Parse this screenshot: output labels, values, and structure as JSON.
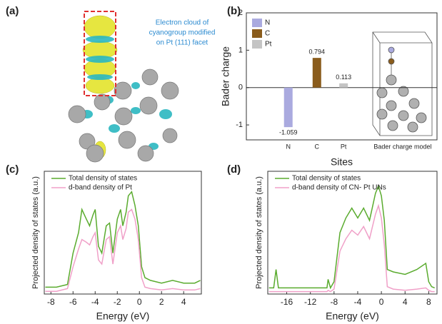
{
  "panel_a": {
    "label": "(a)",
    "caption": [
      "Electron cloud of",
      "cyanogroup modified",
      "on Pt (111) facet"
    ]
  },
  "chart_data": [
    {
      "type": "bar",
      "panel_label": "(b)",
      "y_label": "Bader charge",
      "x_label": "Sites",
      "categories": [
        "N",
        "C",
        "Pt",
        "Bader charge model"
      ],
      "series": [
        {
          "name": "N",
          "color": "#aaaadf",
          "values": [
            -1.059,
            null,
            null,
            null
          ]
        },
        {
          "name": "C",
          "color": "#8a5c1c",
          "values": [
            null,
            0.794,
            null,
            null
          ]
        },
        {
          "name": "Pt",
          "color": "#c4c4c4",
          "values": [
            null,
            null,
            0.113,
            null
          ]
        }
      ],
      "ylim": [
        -1.4,
        2
      ],
      "yticks": [
        -1,
        0,
        1,
        2
      ],
      "legend": "upper left"
    },
    {
      "type": "line",
      "panel_label": "(c)",
      "y_label": "Projected density of states (a.u.)",
      "x_label": "Energy (eV)",
      "x": [
        -8.5,
        -7.5,
        -6.5,
        -6,
        -5.5,
        -5.2,
        -4.8,
        -4.5,
        -4.2,
        -4,
        -3.7,
        -3.4,
        -3,
        -2.7,
        -2.4,
        -2,
        -1.7,
        -1.5,
        -1.2,
        -1,
        -0.7,
        -0.4,
        -0.1,
        0.2,
        0.5,
        1,
        2,
        3,
        4,
        5,
        5.5
      ],
      "series": [
        {
          "name": "Total density of states",
          "color": "#5aab2e",
          "values": [
            0.05,
            0.05,
            0.07,
            0.3,
            0.45,
            0.62,
            0.55,
            0.5,
            0.58,
            0.62,
            0.35,
            0.3,
            0.5,
            0.52,
            0.3,
            0.55,
            0.62,
            0.5,
            0.6,
            0.72,
            0.75,
            0.65,
            0.5,
            0.2,
            0.12,
            0.1,
            0.08,
            0.1,
            0.08,
            0.08,
            0.1
          ]
        },
        {
          "name": "d-band density of Pt",
          "color": "#f0a0c8",
          "values": [
            0.02,
            0.02,
            0.04,
            0.2,
            0.33,
            0.4,
            0.38,
            0.36,
            0.42,
            0.45,
            0.25,
            0.22,
            0.4,
            0.42,
            0.22,
            0.45,
            0.5,
            0.4,
            0.48,
            0.6,
            0.62,
            0.55,
            0.4,
            0.12,
            0.05,
            0.04,
            0.03,
            0.04,
            0.03,
            0.03,
            0.04
          ]
        }
      ],
      "xlim": [
        -8.6,
        5.6
      ],
      "xticks": [
        -8,
        -6,
        -4,
        -2,
        0,
        2,
        4
      ],
      "ylim": [
        0,
        0.9
      ],
      "legend": "upper left"
    },
    {
      "type": "line",
      "panel_label": "(d)",
      "y_label": "Projected density of states (a.u.)",
      "x_label": "Energy (eV)",
      "x": [
        -19,
        -18.2,
        -17.8,
        -17.4,
        -10,
        -9.2,
        -9,
        -8.6,
        -8,
        -7,
        -6,
        -5,
        -4,
        -3,
        -2,
        -1,
        -0.5,
        0,
        0.5,
        1,
        2,
        4,
        6,
        7.5,
        8,
        8.5,
        9
      ],
      "series": [
        {
          "name": "Total density of states",
          "color": "#5aab2e",
          "values": [
            0.05,
            0.05,
            0.2,
            0.05,
            0.05,
            0.05,
            0.12,
            0.05,
            0.1,
            0.5,
            0.62,
            0.7,
            0.62,
            0.7,
            0.6,
            0.82,
            0.88,
            0.8,
            0.6,
            0.2,
            0.18,
            0.16,
            0.2,
            0.25,
            0.1,
            0.06,
            0.05
          ]
        },
        {
          "name": "d-band density of CN- Pt UNs",
          "color": "#f0a0c8",
          "values": [
            0.02,
            0.02,
            0.02,
            0.02,
            0.02,
            0.02,
            0.03,
            0.02,
            0.04,
            0.35,
            0.45,
            0.52,
            0.48,
            0.55,
            0.45,
            0.65,
            0.72,
            0.62,
            0.4,
            0.06,
            0.04,
            0.03,
            0.04,
            0.05,
            0.03,
            0.02,
            0.02
          ]
        }
      ],
      "xlim": [
        -19.2,
        9.4
      ],
      "xticks": [
        -16,
        -12,
        -8,
        -4,
        0,
        4,
        8
      ],
      "ylim": [
        0,
        1
      ],
      "legend": "upper left"
    }
  ]
}
